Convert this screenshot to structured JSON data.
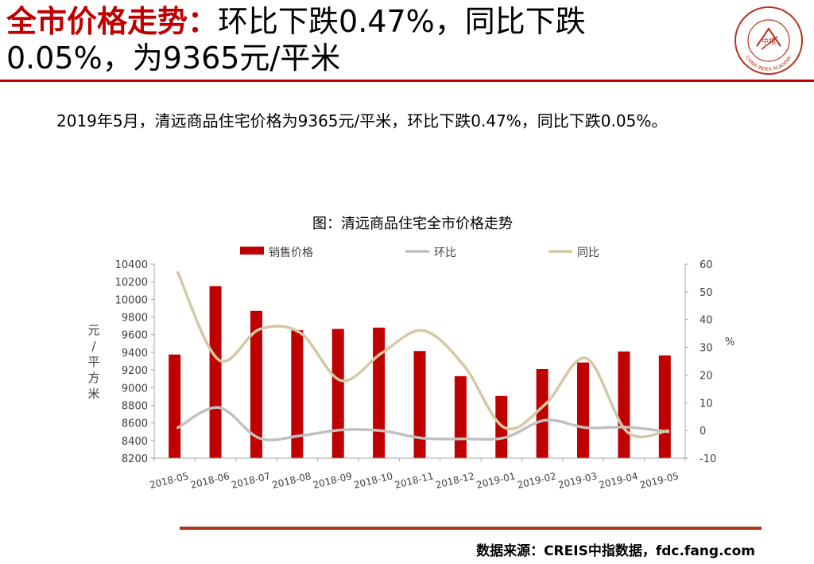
{
  "header": {
    "title_red": "全市价格走势：",
    "title_black": "环比下跌0.47%，同比下跌0.05%，为9365元/平米",
    "logo_text_outer": "CHINA INDEX ACADEMY",
    "logo_text_center": "中指"
  },
  "summary": "2019年5月，清远商品住宅价格为9365元/平米，环比下跌0.47%，同比下跌0.05%。",
  "source": "数据来源：CREIS中指数据，fdc.fang.com",
  "colors": {
    "accent": "#c00000",
    "bar": "#c00000",
    "mom_line": "#c0c0c0",
    "yoy_line": "#d3c9a4",
    "footer_rule": "#b5321d"
  },
  "chart_data": {
    "type": "bar",
    "title": "图：清远商品住宅全市价格走势",
    "categories": [
      "2018-05",
      "2018-06",
      "2018-07",
      "2018-08",
      "2018-09",
      "2018-10",
      "2018-11",
      "2018-12",
      "2019-01",
      "2019-02",
      "2019-03",
      "2019-04",
      "2019-05"
    ],
    "ylabel": "元/平方米",
    "y2label": "%",
    "ylim": [
      8200,
      10400
    ],
    "yticks": [
      "10400",
      "10200",
      "10000",
      "9800",
      "9600",
      "9400",
      "9200",
      "9000",
      "8800",
      "8600",
      "8400",
      "8200"
    ],
    "y2lim": [
      -10,
      60
    ],
    "y2ticks": [
      "60",
      "50",
      "40",
      "30",
      "20",
      "10",
      "0",
      "-10"
    ],
    "legend": [
      "销售价格",
      "环比",
      "同比"
    ],
    "legend_position": "top",
    "series": [
      {
        "name": "销售价格",
        "kind": "bar",
        "axis": "left",
        "values": [
          9375,
          10150,
          9870,
          9650,
          9665,
          9680,
          9415,
          9130,
          8905,
          9210,
          9285,
          9410,
          9365
        ]
      },
      {
        "name": "环比",
        "kind": "line",
        "axis": "right",
        "values": [
          1.0,
          8.3,
          -2.8,
          -1.9,
          0.2,
          -0.1,
          -2.8,
          -3.0,
          -2.6,
          3.7,
          1.0,
          1.2,
          -0.47
        ]
      },
      {
        "name": "同比",
        "kind": "line",
        "axis": "right",
        "values": [
          57.0,
          25.5,
          36.5,
          35.2,
          18.0,
          28.0,
          36.0,
          23.5,
          1.0,
          9.5,
          26.0,
          -0.5,
          -0.05
        ]
      }
    ]
  }
}
